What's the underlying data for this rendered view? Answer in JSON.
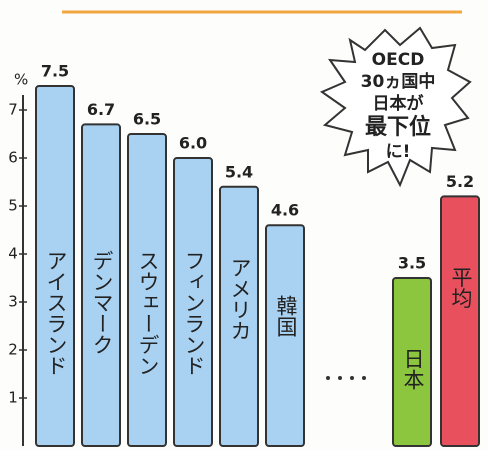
{
  "chart_data": {
    "type": "bar",
    "y_label": "%",
    "categories": [
      "アイスランド",
      "デンマーク",
      "スウェーデン",
      "フィンランド",
      "アメリカ",
      "韓国",
      "日本",
      "平均"
    ],
    "values": [
      7.5,
      6.7,
      6.5,
      6.0,
      5.4,
      4.6,
      3.5,
      5.2
    ],
    "value_labels": [
      "7.5",
      "6.7",
      "6.5",
      "6.0",
      "5.4",
      "4.6",
      "3.5",
      "5.2"
    ],
    "colors": [
      "#a9d2f2",
      "#a9d2f2",
      "#a9d2f2",
      "#a9d2f2",
      "#a9d2f2",
      "#a9d2f2",
      "#8cc63f",
      "#e9505e"
    ],
    "ylim": [
      0,
      7.5
    ],
    "yticks": [
      1,
      2,
      3,
      4,
      5,
      6,
      7
    ],
    "annotation": [
      "OECD",
      "30ヵ国中",
      "日本が",
      "最下位",
      "に!"
    ]
  }
}
